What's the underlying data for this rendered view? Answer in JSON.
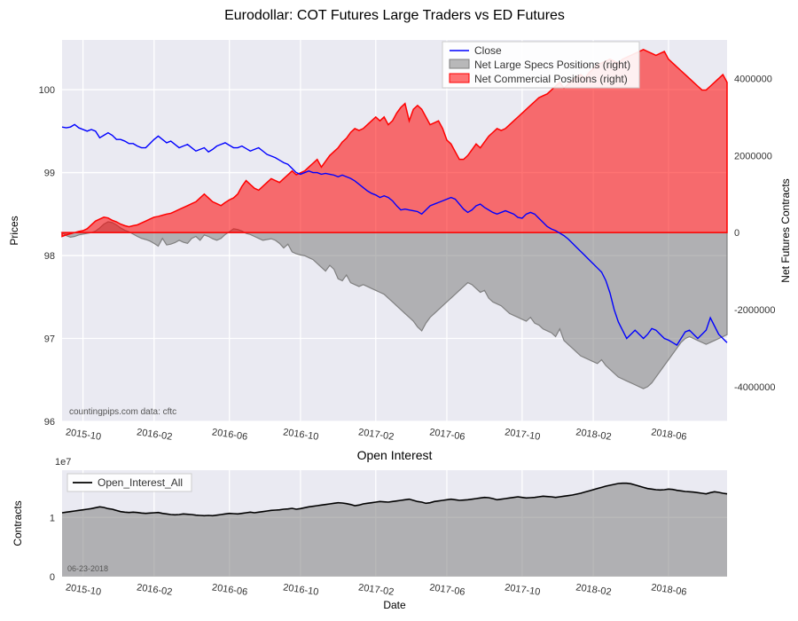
{
  "main_chart": {
    "title": "Eurodollar: COT Futures Large Traders vs ED Futures",
    "plot_bg": "#eaeaf2",
    "grid_color": "#ffffff",
    "x_ticklabels": [
      "2015-10",
      "2016-02",
      "2016-06",
      "2016-10",
      "2017-02",
      "2017-06",
      "2017-10",
      "2018-02",
      "2018-06"
    ],
    "y_left_label": "Prices",
    "y_left_ticks": [
      96,
      97,
      98,
      99,
      100
    ],
    "y_left_lim": [
      96,
      100.6
    ],
    "y_right_label": "Net Futures Contracts",
    "y_right_ticks": [
      -4000000,
      -2000000,
      0,
      2000000,
      4000000
    ],
    "y_right_lim": [
      -4900000,
      5000000
    ],
    "title_fontsize": 16,
    "close_color": "#0000ff",
    "close_linewidth": 1.4,
    "specs_fill_color": "#808080",
    "specs_fill_alpha": 0.55,
    "specs_edge_color": "#808080",
    "commercial_fill_color": "#ff0000",
    "commercial_fill_alpha": 0.55,
    "commercial_edge_color": "#ff0000",
    "legend": {
      "items": [
        {
          "type": "line",
          "label": "Close",
          "color": "#0000ff"
        },
        {
          "type": "patch",
          "label": "Net Large Specs Positions (right)",
          "color": "#808080"
        },
        {
          "type": "patch",
          "label": "Net Commercial Positions (right)",
          "color": "#ff0000"
        }
      ]
    },
    "attribution": "countingpips.com    data: cftc",
    "x_data": [
      0,
      1,
      2,
      3,
      4,
      5,
      6,
      7,
      8,
      9,
      10,
      11,
      12,
      13,
      14,
      15,
      16,
      17,
      18,
      19,
      20,
      21,
      22,
      23,
      24,
      25,
      26,
      27,
      28,
      29,
      30,
      31,
      32,
      33,
      34,
      35,
      36,
      37,
      38,
      39,
      40,
      41,
      42,
      43,
      44,
      45,
      46,
      47,
      48,
      49,
      50,
      51,
      52,
      53,
      54,
      55,
      56,
      57,
      58,
      59,
      60,
      61,
      62,
      63,
      64,
      65,
      66,
      67,
      68,
      69,
      70,
      71,
      72,
      73,
      74,
      75,
      76,
      77,
      78,
      79,
      80,
      81,
      82,
      83,
      84,
      85,
      86,
      87,
      88,
      89,
      90,
      91,
      92,
      93,
      94,
      95,
      96,
      97,
      98,
      99,
      100,
      101,
      102,
      103,
      104,
      105,
      106,
      107,
      108,
      109,
      110,
      111,
      112,
      113,
      114,
      115,
      116,
      117,
      118,
      119,
      120,
      121,
      122,
      123,
      124,
      125,
      126,
      127,
      128,
      129,
      130,
      131,
      132,
      133,
      134,
      135,
      136,
      137,
      138,
      139,
      140,
      141,
      142,
      143,
      144,
      145,
      146,
      147,
      148,
      149,
      150,
      151,
      152,
      153,
      154,
      155,
      156,
      157,
      158,
      159
    ],
    "x_domain": [
      0,
      159
    ],
    "x_tick_positions": [
      5,
      22,
      40,
      57,
      75,
      92,
      110,
      127,
      145
    ],
    "close": [
      99.55,
      99.54,
      99.55,
      99.58,
      99.54,
      99.52,
      99.5,
      99.52,
      99.5,
      99.42,
      99.45,
      99.48,
      99.45,
      99.4,
      99.4,
      99.38,
      99.35,
      99.35,
      99.32,
      99.3,
      99.3,
      99.35,
      99.4,
      99.44,
      99.4,
      99.36,
      99.38,
      99.34,
      99.3,
      99.32,
      99.34,
      99.3,
      99.26,
      99.28,
      99.3,
      99.25,
      99.28,
      99.32,
      99.34,
      99.36,
      99.33,
      99.3,
      99.3,
      99.32,
      99.29,
      99.26,
      99.28,
      99.3,
      99.26,
      99.22,
      99.2,
      99.18,
      99.15,
      99.12,
      99.1,
      99.05,
      99.0,
      98.98,
      99.0,
      99.02,
      99.0,
      99.0,
      98.98,
      98.99,
      98.98,
      98.97,
      98.95,
      98.97,
      98.95,
      98.93,
      98.9,
      98.86,
      98.82,
      98.78,
      98.75,
      98.73,
      98.7,
      98.72,
      98.7,
      98.66,
      98.6,
      98.55,
      98.56,
      98.55,
      98.54,
      98.53,
      98.5,
      98.55,
      98.6,
      98.62,
      98.64,
      98.66,
      98.68,
      98.7,
      98.68,
      98.62,
      98.56,
      98.52,
      98.55,
      98.6,
      98.62,
      98.58,
      98.55,
      98.52,
      98.5,
      98.52,
      98.54,
      98.52,
      98.5,
      98.46,
      98.45,
      98.5,
      98.52,
      98.5,
      98.45,
      98.4,
      98.35,
      98.32,
      98.3,
      98.27,
      98.24,
      98.2,
      98.15,
      98.1,
      98.05,
      98.0,
      97.95,
      97.9,
      97.85,
      97.8,
      97.7,
      97.55,
      97.35,
      97.2,
      97.1,
      97.0,
      97.05,
      97.1,
      97.05,
      97.0,
      97.05,
      97.12,
      97.1,
      97.05,
      97.0,
      96.98,
      96.95,
      96.92,
      97.0,
      97.08,
      97.1,
      97.05,
      97.0,
      97.05,
      97.1,
      97.25,
      97.15,
      97.05,
      97.0,
      96.95
    ],
    "specs": [
      0,
      -80000,
      -120000,
      -100000,
      -60000,
      -40000,
      -20000,
      0,
      40000,
      120000,
      220000,
      280000,
      260000,
      200000,
      120000,
      60000,
      20000,
      -40000,
      -100000,
      -150000,
      -180000,
      -220000,
      -280000,
      -350000,
      -150000,
      -320000,
      -300000,
      -260000,
      -200000,
      -250000,
      -280000,
      -150000,
      -100000,
      -200000,
      -60000,
      -100000,
      -160000,
      -200000,
      -150000,
      -50000,
      20000,
      100000,
      80000,
      40000,
      -20000,
      -50000,
      -100000,
      -150000,
      -200000,
      -180000,
      -160000,
      -200000,
      -280000,
      -400000,
      -300000,
      -500000,
      -550000,
      -580000,
      -600000,
      -650000,
      -700000,
      -800000,
      -900000,
      -1000000,
      -850000,
      -950000,
      -1200000,
      -1250000,
      -1100000,
      -1300000,
      -1350000,
      -1400000,
      -1350000,
      -1400000,
      -1450000,
      -1500000,
      -1550000,
      -1600000,
      -1700000,
      -1800000,
      -1900000,
      -2000000,
      -2100000,
      -2200000,
      -2300000,
      -2450000,
      -2550000,
      -2350000,
      -2200000,
      -2100000,
      -2000000,
      -1900000,
      -1800000,
      -1700000,
      -1600000,
      -1500000,
      -1400000,
      -1300000,
      -1350000,
      -1450000,
      -1550000,
      -1500000,
      -1700000,
      -1800000,
      -1850000,
      -1900000,
      -2000000,
      -2100000,
      -2150000,
      -2200000,
      -2250000,
      -2300000,
      -2200000,
      -2350000,
      -2400000,
      -2500000,
      -2550000,
      -2600000,
      -2700000,
      -2500000,
      -2800000,
      -2900000,
      -3000000,
      -3100000,
      -3200000,
      -3250000,
      -3300000,
      -3350000,
      -3400000,
      -3300000,
      -3450000,
      -3550000,
      -3650000,
      -3750000,
      -3800000,
      -3850000,
      -3900000,
      -3950000,
      -4000000,
      -4050000,
      -4000000,
      -3900000,
      -3750000,
      -3600000,
      -3450000,
      -3300000,
      -3150000,
      -3000000,
      -2850000,
      -2750000,
      -2700000,
      -2750000,
      -2800000,
      -2850000,
      -2900000,
      -2850000,
      -2800000,
      -2750000,
      -2700000,
      -2650000
    ],
    "commercial": [
      -100000,
      -60000,
      -30000,
      0,
      30000,
      50000,
      100000,
      200000,
      300000,
      350000,
      400000,
      380000,
      320000,
      280000,
      220000,
      180000,
      150000,
      180000,
      200000,
      250000,
      300000,
      350000,
      400000,
      420000,
      450000,
      480000,
      500000,
      550000,
      600000,
      650000,
      700000,
      750000,
      800000,
      900000,
      1000000,
      900000,
      800000,
      750000,
      700000,
      780000,
      850000,
      900000,
      1000000,
      1200000,
      1350000,
      1250000,
      1150000,
      1100000,
      1200000,
      1300000,
      1400000,
      1350000,
      1300000,
      1400000,
      1500000,
      1600000,
      1500000,
      1550000,
      1600000,
      1700000,
      1800000,
      1900000,
      1700000,
      1850000,
      2000000,
      2100000,
      2200000,
      2350000,
      2450000,
      2600000,
      2700000,
      2650000,
      2700000,
      2800000,
      2900000,
      3000000,
      2900000,
      3000000,
      2800000,
      2900000,
      3100000,
      3250000,
      3350000,
      2900000,
      3200000,
      3300000,
      3200000,
      3000000,
      2800000,
      2850000,
      2900000,
      2700000,
      2400000,
      2300000,
      2100000,
      1900000,
      1900000,
      2000000,
      2150000,
      2300000,
      2200000,
      2350000,
      2500000,
      2600000,
      2700000,
      2650000,
      2700000,
      2800000,
      2900000,
      3000000,
      3100000,
      3200000,
      3300000,
      3400000,
      3500000,
      3550000,
      3600000,
      3700000,
      3800000,
      3900000,
      3750000,
      3850000,
      3950000,
      4050000,
      4100000,
      4000000,
      4150000,
      4250000,
      4350000,
      4400000,
      4450000,
      4500000,
      4450000,
      4400000,
      4500000,
      4550000,
      4600000,
      4650000,
      4700000,
      4750000,
      4700000,
      4650000,
      4600000,
      4650000,
      4700000,
      4500000,
      4400000,
      4300000,
      4200000,
      4100000,
      4000000,
      3900000,
      3800000,
      3700000,
      3700000,
      3800000,
      3900000,
      4000000,
      4100000,
      3900000
    ]
  },
  "open_interest_chart": {
    "title": "Open Interest",
    "plot_bg": "#eaeaf2",
    "grid_color": "#ffffff",
    "y_label": "Contracts",
    "y_ticks": [
      0,
      10000000
    ],
    "y_ticklabels": [
      "0",
      "1"
    ],
    "y_offset": "1e7",
    "y_lim": [
      0,
      18000000
    ],
    "x_label": "Date",
    "x_ticklabels": [
      "2015-10",
      "2016-02",
      "2016-06",
      "2016-10",
      "2017-02",
      "2017-06",
      "2017-10",
      "2018-02",
      "2018-06"
    ],
    "line_color": "#000000",
    "fill_color": "#808080",
    "fill_alpha": 0.55,
    "legend": {
      "label": "Open_Interest_All"
    },
    "date_label": "06-23-2018",
    "x_data_domain": [
      0,
      159
    ],
    "values": [
      10800000,
      10900000,
      11000000,
      11100000,
      11200000,
      11300000,
      11400000,
      11500000,
      11650000,
      11800000,
      11700000,
      11500000,
      11400000,
      11200000,
      11000000,
      10900000,
      10850000,
      10900000,
      10850000,
      10750000,
      10700000,
      10750000,
      10800000,
      10850000,
      10700000,
      10600000,
      10500000,
      10450000,
      10500000,
      10600000,
      10550000,
      10500000,
      10400000,
      10350000,
      10300000,
      10350000,
      10300000,
      10400000,
      10500000,
      10600000,
      10700000,
      10650000,
      10600000,
      10700000,
      10800000,
      10900000,
      10800000,
      10900000,
      11000000,
      11100000,
      11200000,
      11250000,
      11300000,
      11400000,
      11450000,
      11550000,
      11400000,
      11500000,
      11650000,
      11800000,
      11900000,
      12000000,
      12100000,
      12200000,
      12300000,
      12400000,
      12500000,
      12450000,
      12350000,
      12200000,
      12000000,
      12100000,
      12300000,
      12400000,
      12500000,
      12600000,
      12700000,
      12650000,
      12600000,
      12700000,
      12800000,
      12900000,
      13000000,
      13100000,
      12900000,
      12700000,
      12600000,
      12400000,
      12500000,
      12700000,
      12800000,
      12900000,
      13000000,
      13100000,
      13000000,
      12900000,
      12950000,
      13000000,
      13100000,
      13200000,
      13300000,
      13400000,
      13350000,
      13200000,
      13000000,
      13100000,
      13200000,
      13300000,
      13400000,
      13500000,
      13400000,
      13300000,
      13350000,
      13400000,
      13500000,
      13600000,
      13550000,
      13500000,
      13400000,
      13500000,
      13600000,
      13700000,
      13800000,
      13950000,
      14100000,
      14300000,
      14500000,
      14700000,
      14900000,
      15100000,
      15300000,
      15450000,
      15600000,
      15750000,
      15800000,
      15800000,
      15700000,
      15500000,
      15300000,
      15100000,
      14900000,
      14800000,
      14700000,
      14650000,
      14700000,
      14800000,
      14750000,
      14600000,
      14500000,
      14400000,
      14350000,
      14300000,
      14200000,
      14100000,
      14000000,
      14200000,
      14350000,
      14250000,
      14100000,
      14000000
    ]
  }
}
